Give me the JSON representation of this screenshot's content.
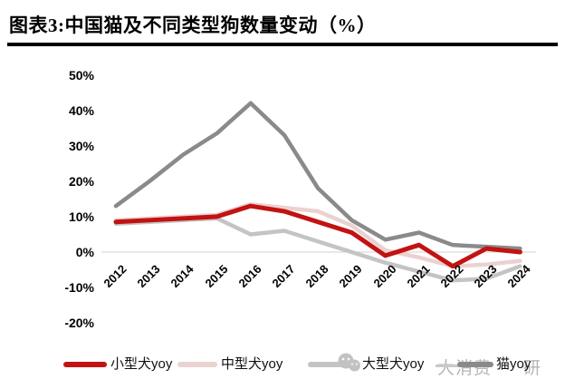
{
  "title": "图表3:中国猫及不同类型狗数量变动（%）",
  "chart_data": {
    "type": "line",
    "title": "图表3:中国猫及不同类型狗数量变动（%）",
    "categories": [
      "2012",
      "2013",
      "2014",
      "2015",
      "2016",
      "2017",
      "2018",
      "2019",
      "2020",
      "2021",
      "2022",
      "2023",
      "2024"
    ],
    "series": [
      {
        "name": "小型犬yoy",
        "color": "#C31212",
        "values": [
          8.5,
          9,
          9.5,
          10,
          13,
          11.5,
          8.5,
          5.5,
          -1,
          2,
          -4,
          1,
          0
        ]
      },
      {
        "name": "中型犬yoy",
        "color": "#EAD2D1",
        "values": [
          9,
          9.5,
          10,
          10.5,
          13.5,
          12.5,
          11.5,
          7.5,
          0.5,
          -1.5,
          -4,
          -3.5,
          -2.5
        ]
      },
      {
        "name": "大型犬yoy",
        "color": "#C4C4C4",
        "values": [
          8,
          8.5,
          9,
          9.5,
          5,
          6,
          3,
          0,
          -3,
          -5.5,
          -8,
          -7.5,
          -4
        ]
      },
      {
        "name": "猫yoy",
        "color": "#8A8A8A",
        "values": [
          13,
          20,
          27.5,
          33.5,
          42,
          33,
          18,
          9,
          3.5,
          5.5,
          2,
          1.5,
          1
        ]
      }
    ],
    "z_order": [
      2,
      1,
      3,
      0
    ],
    "ylim": [
      -20,
      50
    ],
    "ytick_labels": [
      "50%",
      "40%",
      "30%",
      "20%",
      "10%",
      "0%",
      "-10%",
      "-20%"
    ],
    "ytick_values": [
      50,
      40,
      30,
      20,
      10,
      0,
      -10,
      -20
    ],
    "grid": "zero-line-only",
    "zero_line_color": "#D9D9D9",
    "legend_position": "bottom",
    "x_label_rotation": -45
  },
  "watermark": {
    "icon": "wechat-icon",
    "texts": [
      "大消费",
      "研"
    ]
  }
}
